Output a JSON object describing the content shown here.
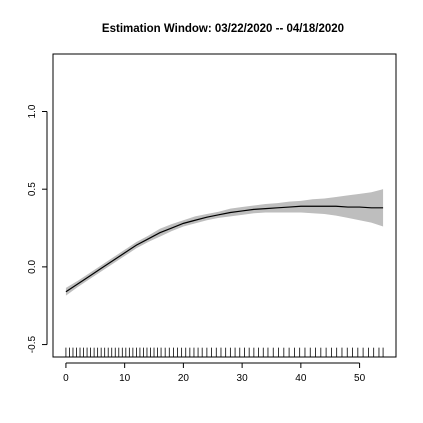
{
  "chart_data": {
    "type": "line",
    "title": "Estimation Window: 03/22/2020 -- 04/18/2020",
    "xlabel": "",
    "ylabel": "",
    "xlim": [
      -2.2,
      56.2
    ],
    "ylim": [
      -0.58,
      1.37
    ],
    "x_ticks": [
      0,
      10,
      20,
      30,
      40,
      50
    ],
    "y_ticks": [
      -0.5,
      0.0,
      0.5,
      1.0
    ],
    "x_tick_labels": [
      "0",
      "10",
      "20",
      "30",
      "40",
      "50"
    ],
    "y_tick_labels": [
      "-0.5",
      "0.0",
      "0.5",
      "1.0"
    ],
    "grid": false,
    "series": [
      {
        "x": [
          0,
          2,
          4,
          6,
          8,
          10,
          12,
          14,
          16,
          18,
          20,
          22,
          24,
          26,
          28,
          30,
          32,
          34,
          36,
          38,
          40,
          42,
          44,
          46,
          48,
          50,
          52,
          54
        ],
        "y": [
          -0.16,
          -0.11,
          -0.06,
          -0.01,
          0.04,
          0.09,
          0.14,
          0.18,
          0.22,
          0.25,
          0.28,
          0.3,
          0.32,
          0.335,
          0.35,
          0.36,
          0.37,
          0.375,
          0.38,
          0.385,
          0.39,
          0.39,
          0.39,
          0.39,
          0.385,
          0.385,
          0.38,
          0.38
        ],
        "lower": [
          -0.185,
          -0.13,
          -0.08,
          -0.03,
          0.02,
          0.07,
          0.12,
          0.16,
          0.195,
          0.23,
          0.26,
          0.28,
          0.3,
          0.315,
          0.325,
          0.335,
          0.345,
          0.35,
          0.35,
          0.35,
          0.35,
          0.345,
          0.34,
          0.33,
          0.315,
          0.3,
          0.285,
          0.26
        ],
        "upper": [
          -0.135,
          -0.09,
          -0.04,
          0.01,
          0.06,
          0.11,
          0.16,
          0.2,
          0.245,
          0.275,
          0.3,
          0.325,
          0.34,
          0.355,
          0.375,
          0.385,
          0.395,
          0.405,
          0.41,
          0.42,
          0.425,
          0.435,
          0.44,
          0.45,
          0.46,
          0.47,
          0.48,
          0.5
        ]
      }
    ],
    "rug_x": [
      0,
      0.6,
      1.2,
      1.8,
      2.4,
      3,
      3.6,
      4.2,
      4.8,
      5.4,
      6,
      6.6,
      7.2,
      7.8,
      8.4,
      9,
      9.6,
      10.2,
      10.8,
      11.4,
      12,
      12.6,
      13.2,
      13.8,
      14.4,
      15,
      15.6,
      16.2,
      16.9,
      17.6,
      18.3,
      19,
      19.7,
      20.4,
      21.1,
      21.8,
      22.5,
      23.2,
      24,
      24.8,
      25.6,
      26.4,
      27.2,
      28,
      28.8,
      29.6,
      30.4,
      31.2,
      32,
      32.8,
      33.6,
      34.4,
      35.3,
      36.2,
      37.1,
      38,
      38.9,
      39.8,
      40.7,
      41.6,
      42.5,
      43.4,
      44.3,
      45.2,
      46.1,
      47,
      47.9,
      48.8,
      49.7,
      50.6,
      51.5,
      52.4,
      53.3,
      54
    ]
  }
}
